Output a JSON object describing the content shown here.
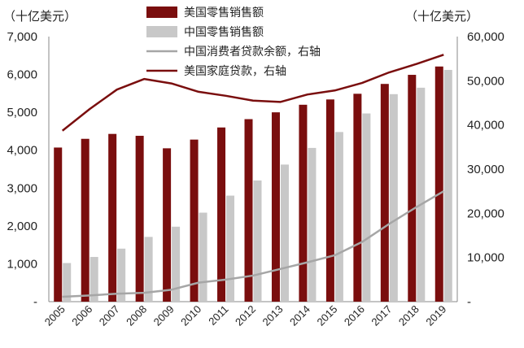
{
  "chart_data": {
    "type": "bar",
    "title": "",
    "categories": [
      "2005",
      "2006",
      "2007",
      "2008",
      "2009",
      "2010",
      "2011",
      "2012",
      "2013",
      "2014",
      "2015",
      "2016",
      "2017",
      "2018",
      "2019"
    ],
    "left_axis": {
      "unit_label": "（十亿美元）",
      "ylim": [
        0,
        7000
      ],
      "ticks": [
        "-",
        "1,000",
        "2,000",
        "3,000",
        "4,000",
        "5,000",
        "6,000",
        "7,000"
      ],
      "tick_values": [
        0,
        1000,
        2000,
        3000,
        4000,
        5000,
        6000,
        7000
      ]
    },
    "right_axis": {
      "unit_label": "（十亿美元）",
      "ylim": [
        0,
        60000
      ],
      "ticks": [
        "-",
        "10,000",
        "20,000",
        "30,000",
        "40,000",
        "50,000",
        "60,000"
      ],
      "tick_values": [
        0,
        10000,
        20000,
        30000,
        40000,
        50000,
        60000
      ]
    },
    "series": [
      {
        "name": "美国零售销售额",
        "type": "bar",
        "axis": "left",
        "color": "#7a0e0e",
        "values": [
          4070,
          4300,
          4430,
          4380,
          4050,
          4280,
          4600,
          4820,
          5000,
          5200,
          5340,
          5490,
          5750,
          5990,
          6210
        ]
      },
      {
        "name": "中国零售销售额",
        "type": "bar",
        "axis": "left",
        "color": "#c8c8c8",
        "values": [
          1020,
          1180,
          1400,
          1710,
          1980,
          2350,
          2800,
          3200,
          3620,
          4060,
          4480,
          4970,
          5480,
          5650,
          6120
        ]
      },
      {
        "name": "中国消费者贷款余额，右轴",
        "type": "line",
        "axis": "right",
        "color": "#a6a6a6",
        "values": [
          1100,
          1400,
          1800,
          2000,
          2700,
          4300,
          5000,
          5900,
          7400,
          8900,
          10500,
          13500,
          17600,
          21400,
          25000
        ]
      },
      {
        "name": "美国家庭贷款，右轴",
        "type": "line",
        "axis": "right",
        "color": "#7a0e0e",
        "values": [
          38700,
          43600,
          48000,
          50400,
          49400,
          47500,
          46600,
          45500,
          45200,
          46900,
          47800,
          49500,
          51900,
          53800,
          55900
        ]
      }
    ],
    "legend": [
      "美国零售销售额",
      "中国零售销售额",
      "中国消费者贷款余额，右轴",
      "美国家庭贷款，右轴"
    ],
    "legend_position": "top-center",
    "grid": false
  }
}
